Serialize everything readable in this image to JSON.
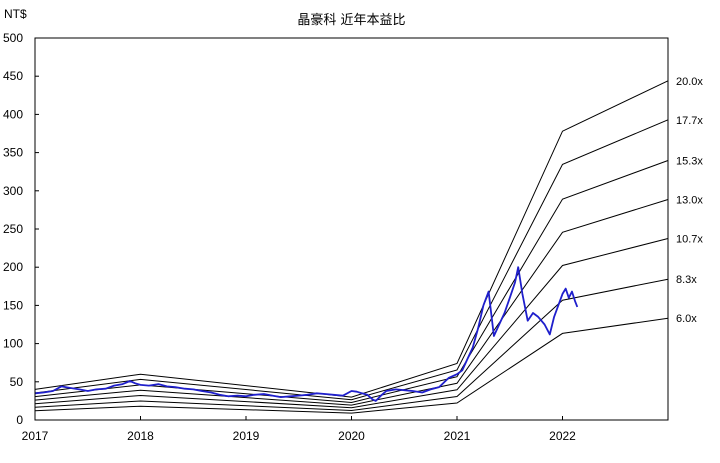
{
  "chart_data": {
    "type": "line",
    "title": "晶豪科 近年本益比",
    "ylabel": "NT$",
    "xlim": [
      2017,
      2023
    ],
    "ylim": [
      0,
      500
    ],
    "x_ticks": [
      "2017",
      "2018",
      "2019",
      "2020",
      "2021",
      "2022"
    ],
    "y_ticks": [
      "0",
      "50",
      "100",
      "150",
      "200",
      "250",
      "300",
      "350",
      "400",
      "450",
      "500"
    ],
    "bands": [
      {
        "label": "20.0x",
        "multiple": 20.0
      },
      {
        "label": "17.7x",
        "multiple": 17.7
      },
      {
        "label": "15.3x",
        "multiple": 15.3
      },
      {
        "label": "13.0x",
        "multiple": 13.0
      },
      {
        "label": "10.7x",
        "multiple": 10.7
      },
      {
        "label": "8.3x",
        "multiple": 8.3
      },
      {
        "label": "6.0x",
        "multiple": 6.0
      }
    ],
    "eps_trailing": [
      {
        "x": 2017.0,
        "y": 2.0
      },
      {
        "x": 2018.0,
        "y": 3.0
      },
      {
        "x": 2020.0,
        "y": 1.5
      },
      {
        "x": 2021.0,
        "y": 3.7
      },
      {
        "x": 2022.0,
        "y": 18.9
      },
      {
        "x": 2023.0,
        "y": 22.2
      }
    ],
    "price_series": {
      "color": "#1f1fcc",
      "points": [
        [
          2017.0,
          35
        ],
        [
          2017.08,
          36
        ],
        [
          2017.17,
          38
        ],
        [
          2017.25,
          44
        ],
        [
          2017.33,
          42
        ],
        [
          2017.42,
          40
        ],
        [
          2017.5,
          38
        ],
        [
          2017.58,
          40
        ],
        [
          2017.67,
          41
        ],
        [
          2017.75,
          45
        ],
        [
          2017.83,
          47
        ],
        [
          2017.9,
          51
        ],
        [
          2017.95,
          48
        ],
        [
          2018.0,
          46
        ],
        [
          2018.08,
          45
        ],
        [
          2018.17,
          47
        ],
        [
          2018.25,
          44
        ],
        [
          2018.33,
          43
        ],
        [
          2018.42,
          41
        ],
        [
          2018.5,
          40
        ],
        [
          2018.58,
          38
        ],
        [
          2018.67,
          36
        ],
        [
          2018.75,
          33
        ],
        [
          2018.83,
          31
        ],
        [
          2018.92,
          32
        ],
        [
          2019.0,
          31
        ],
        [
          2019.08,
          33
        ],
        [
          2019.17,
          34
        ],
        [
          2019.25,
          32
        ],
        [
          2019.33,
          30
        ],
        [
          2019.42,
          31
        ],
        [
          2019.5,
          32
        ],
        [
          2019.58,
          33
        ],
        [
          2019.67,
          35
        ],
        [
          2019.75,
          34
        ],
        [
          2019.83,
          33
        ],
        [
          2019.92,
          32
        ],
        [
          2020.0,
          38
        ],
        [
          2020.05,
          37
        ],
        [
          2020.1,
          35
        ],
        [
          2020.15,
          33
        ],
        [
          2020.2,
          27
        ],
        [
          2020.23,
          25
        ],
        [
          2020.28,
          32
        ],
        [
          2020.33,
          38
        ],
        [
          2020.42,
          40
        ],
        [
          2020.5,
          39
        ],
        [
          2020.58,
          38
        ],
        [
          2020.67,
          36
        ],
        [
          2020.75,
          40
        ],
        [
          2020.83,
          43
        ],
        [
          2020.92,
          55
        ],
        [
          2021.0,
          60
        ],
        [
          2021.05,
          65
        ],
        [
          2021.1,
          80
        ],
        [
          2021.15,
          95
        ],
        [
          2021.2,
          120
        ],
        [
          2021.25,
          150
        ],
        [
          2021.3,
          168
        ],
        [
          2021.35,
          110
        ],
        [
          2021.4,
          125
        ],
        [
          2021.45,
          140
        ],
        [
          2021.5,
          160
        ],
        [
          2021.55,
          180
        ],
        [
          2021.58,
          200
        ],
        [
          2021.62,
          165
        ],
        [
          2021.67,
          130
        ],
        [
          2021.72,
          140
        ],
        [
          2021.77,
          135
        ],
        [
          2021.83,
          125
        ],
        [
          2021.88,
          112
        ],
        [
          2021.92,
          135
        ],
        [
          2021.96,
          150
        ],
        [
          2022.0,
          165
        ],
        [
          2022.03,
          172
        ],
        [
          2022.06,
          160
        ],
        [
          2022.09,
          168
        ],
        [
          2022.12,
          155
        ],
        [
          2022.14,
          148
        ]
      ]
    }
  }
}
